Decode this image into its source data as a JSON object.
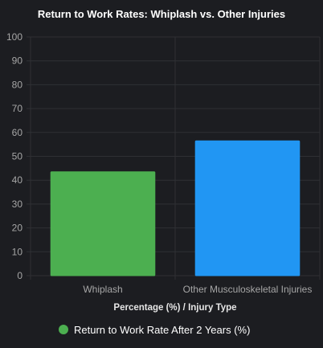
{
  "chart_data": {
    "type": "bar",
    "title": "Return to Work Rates: Whiplash vs. Other Injuries",
    "categories": [
      "Whiplash",
      "Other Musculoskeletal Injuries"
    ],
    "series": [
      {
        "name": "Return to Work Rate After 2 Years (%)",
        "values": [
          43.5,
          56.5
        ],
        "colors": [
          "#4caf50",
          "#2196f3"
        ]
      }
    ],
    "xlabel": "Percentage (%) / Injury Type",
    "ylabel": "",
    "ylim": [
      0,
      100
    ],
    "yticks": [
      0,
      10,
      20,
      30,
      40,
      50,
      60,
      70,
      80,
      90,
      100
    ],
    "grid": true,
    "legend": "bottom"
  },
  "legend": {
    "label": "Return to Work Rate After 2 Years (%)",
    "color": "#4caf50"
  },
  "theme": {
    "background": "#1c1d21",
    "grid": "#2f3034",
    "tick_text": "#a6a6a6"
  }
}
